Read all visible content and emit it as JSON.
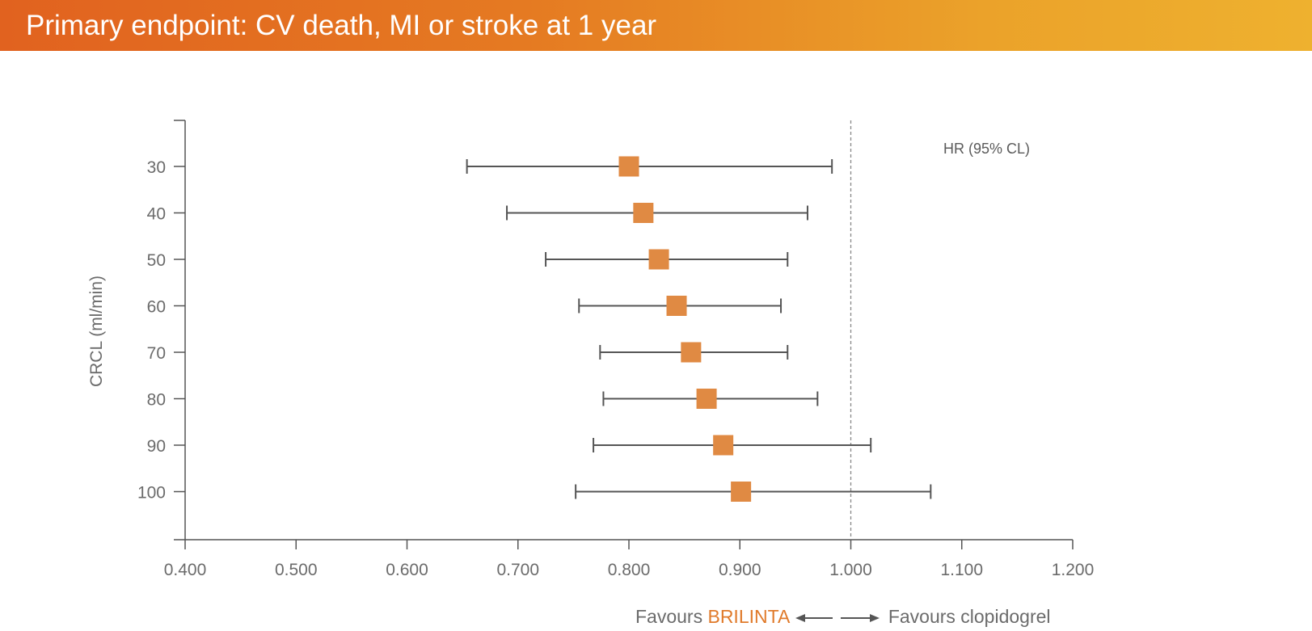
{
  "header": {
    "title": "Primary endpoint: CV death, MI or stroke at 1 year"
  },
  "colors": {
    "header_start": "#e1621f",
    "header_end": "#eeb12f",
    "marker": "#e08a43",
    "whisker": "#555555",
    "axis": "#555555",
    "reference_line": "#888888"
  },
  "chart_data": {
    "type": "forest",
    "ylabel": "CRCL (ml/min)",
    "corner_label": "HR (95% CL)",
    "x_ticks": [
      "0.400",
      "0.500",
      "0.600",
      "0.700",
      "0.800",
      "0.900",
      "1.000",
      "1.100",
      "1.200"
    ],
    "xlim": [
      0.4,
      1.2
    ],
    "reference_x": 1.0,
    "rows": [
      {
        "label": "30",
        "hr": 0.8,
        "lower": 0.654,
        "upper": 0.983
      },
      {
        "label": "40",
        "hr": 0.813,
        "lower": 0.69,
        "upper": 0.961
      },
      {
        "label": "50",
        "hr": 0.827,
        "lower": 0.725,
        "upper": 0.943
      },
      {
        "label": "60",
        "hr": 0.843,
        "lower": 0.755,
        "upper": 0.937
      },
      {
        "label": "70",
        "hr": 0.856,
        "lower": 0.774,
        "upper": 0.943
      },
      {
        "label": "80",
        "hr": 0.87,
        "lower": 0.777,
        "upper": 0.97
      },
      {
        "label": "90",
        "hr": 0.885,
        "lower": 0.768,
        "upper": 1.018
      },
      {
        "label": "100",
        "hr": 0.901,
        "lower": 0.752,
        "upper": 1.072
      }
    ]
  },
  "footer": {
    "favours_left_prefix": "Favours",
    "favours_left_brand": "BRILINTA",
    "favours_right": "Favours clopidogrel"
  }
}
